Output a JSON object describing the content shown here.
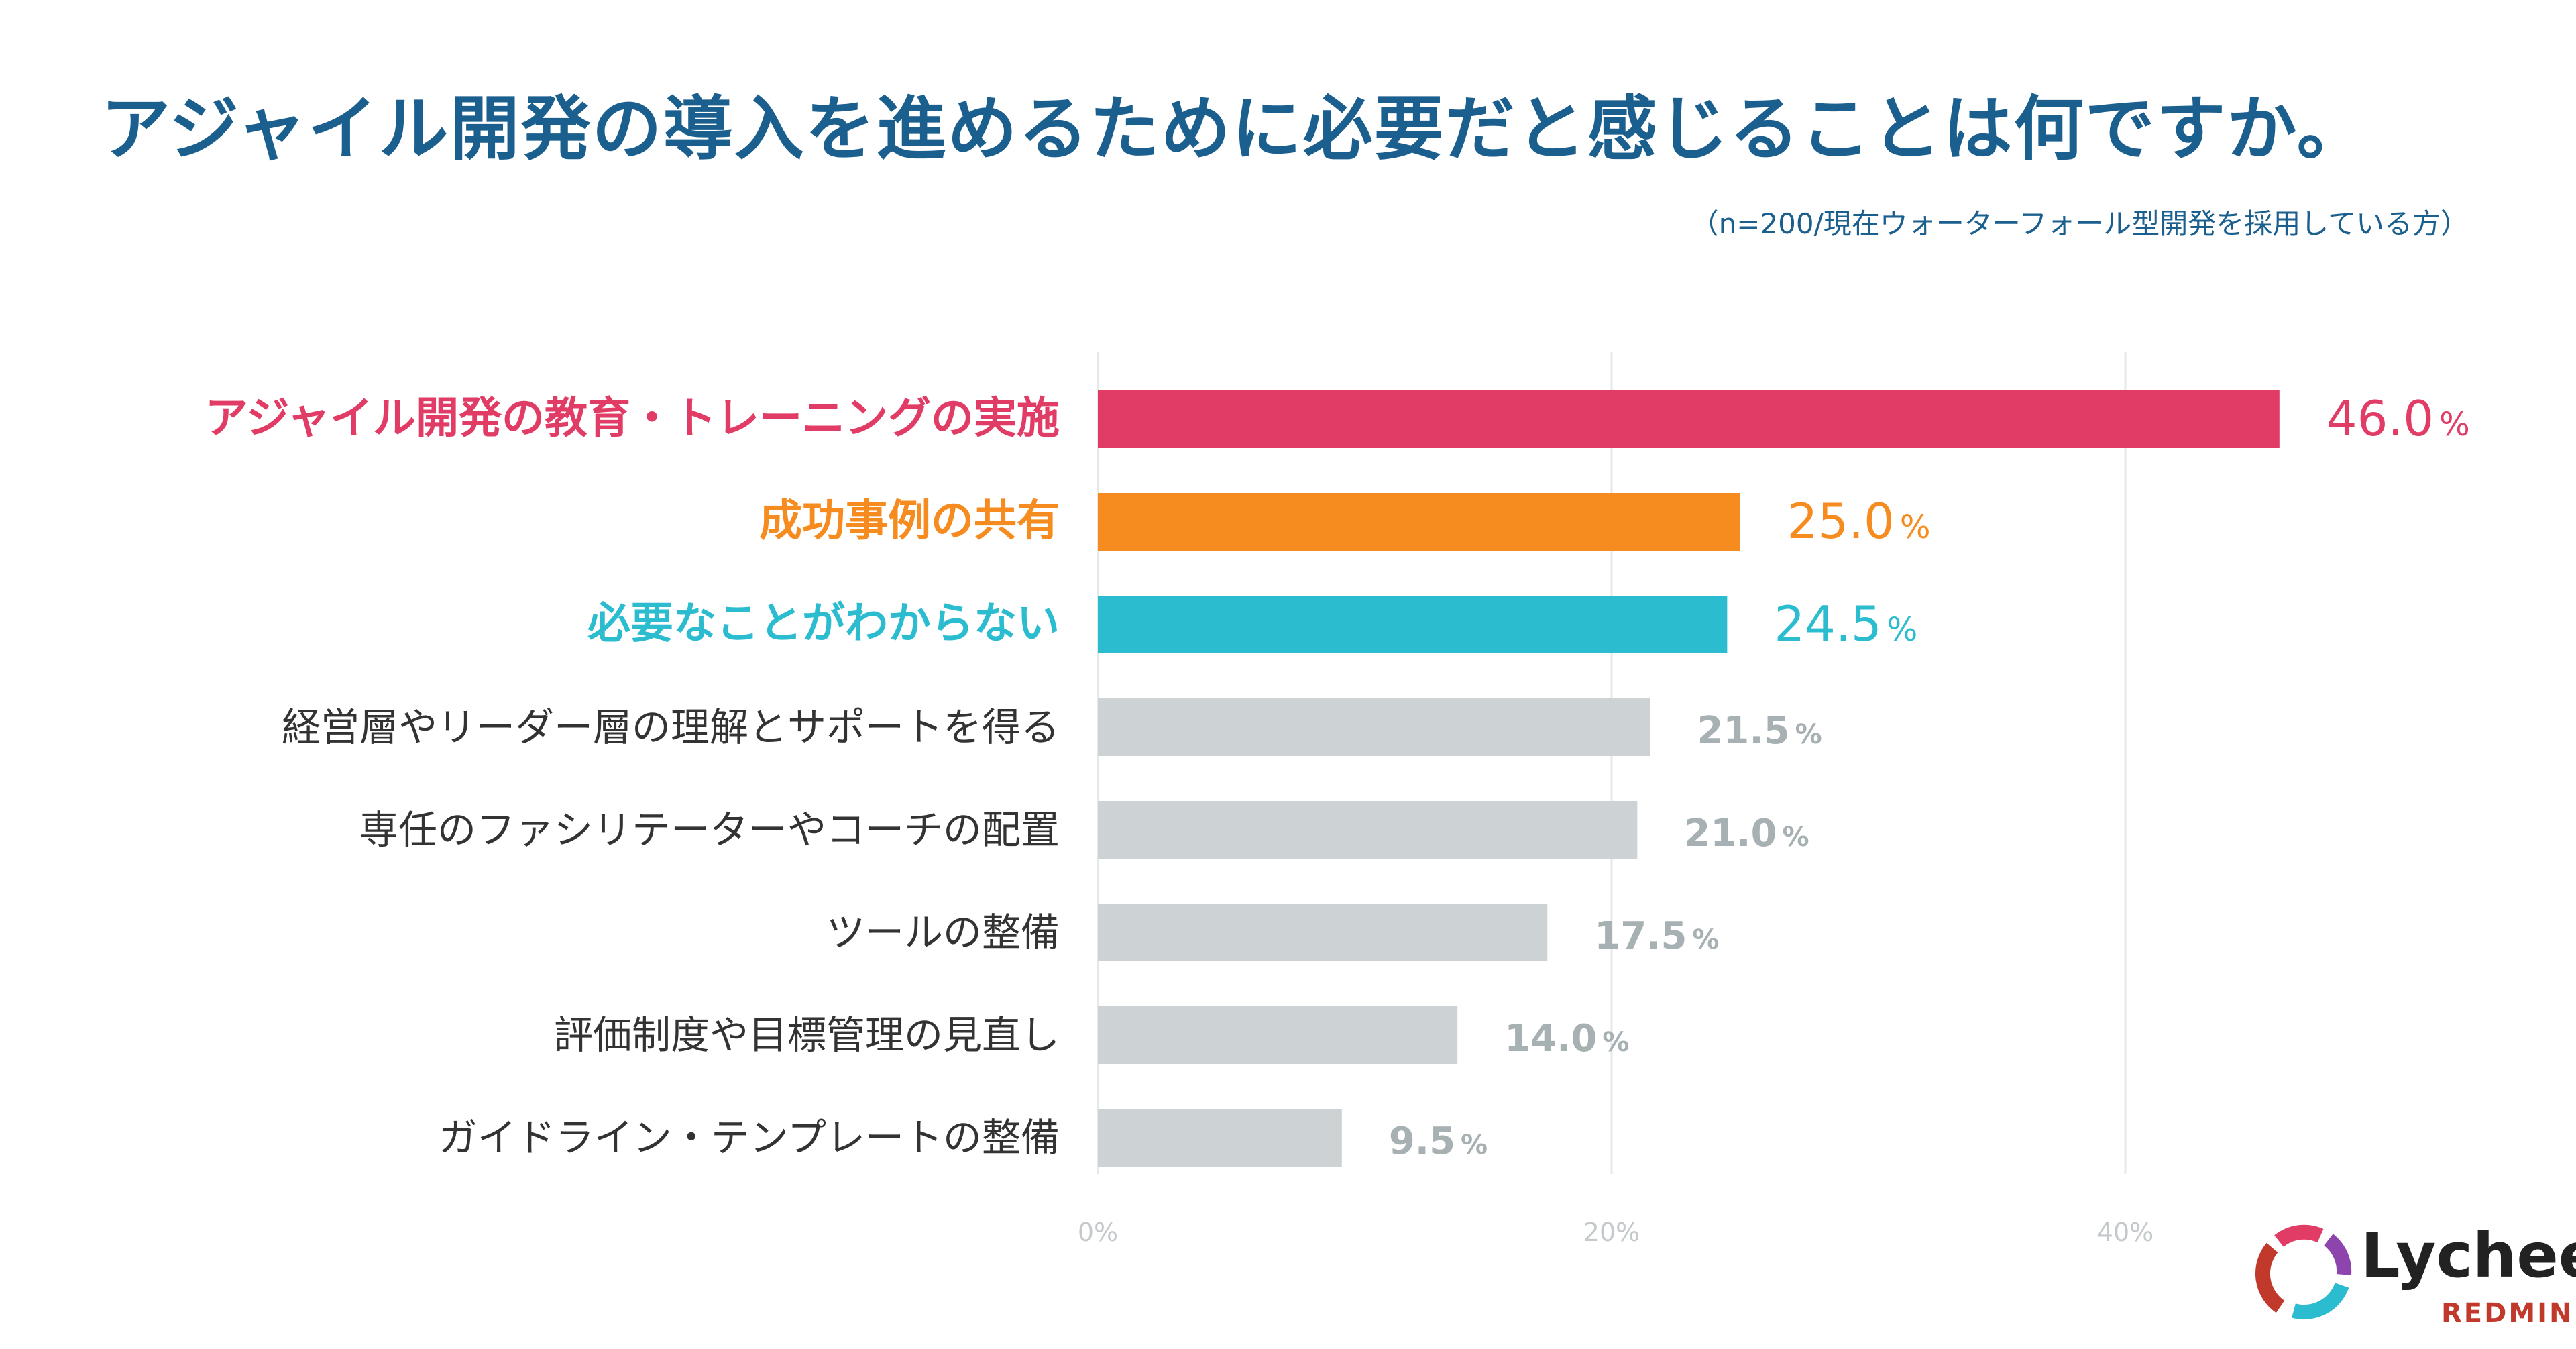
{
  "title": "アジャイル開発の導入を進めるために必要だと感じることは何ですか。",
  "subtitle": "（n=200/現在ウォーターフォール型開発を採用している方）",
  "chart_data": {
    "type": "bar",
    "orientation": "horizontal",
    "categories": [
      "アジャイル開発の教育・トレーニングの実施",
      "成功事例の共有",
      "必要なことがわからない",
      "経営層やリーダー層の理解とサポートを得る",
      "専任のファシリテーターやコーチの配置",
      "ツールの整備",
      "評価制度や目標管理の見直し",
      "ガイドライン・テンプレートの整備"
    ],
    "values": [
      46.0,
      25.0,
      24.5,
      21.5,
      21.0,
      17.5,
      14.0,
      9.5
    ],
    "value_labels": [
      "46.0",
      "25.0",
      "24.5",
      "21.5",
      "21.0",
      "17.5",
      "14.0",
      "9.5"
    ],
    "value_unit": "%",
    "colors": [
      "#e03c65",
      "#f68b1f",
      "#2cbccf",
      "#cdd3d4",
      "#cdd3d4",
      "#cdd3d4",
      "#cdd3d4",
      "#cdd3d4"
    ],
    "label_colors": [
      "#e03c65",
      "#f68b1f",
      "#2cbccf",
      "#333333",
      "#333333",
      "#333333",
      "#333333",
      "#333333"
    ],
    "value_colors": [
      "#e03c65",
      "#f68b1f",
      "#2cbccf",
      "#a7b0b3",
      "#a7b0b3",
      "#a7b0b3",
      "#a7b0b3",
      "#a7b0b3"
    ],
    "xticks": [
      "0%",
      "20%",
      "40%"
    ],
    "xlim": [
      0,
      48
    ],
    "grid": true
  },
  "logo": {
    "word": "Lychee",
    "sub": "REDMINE",
    "colors": [
      "#c0392b",
      "#e03c65",
      "#8e44ad",
      "#2cbccf"
    ]
  }
}
